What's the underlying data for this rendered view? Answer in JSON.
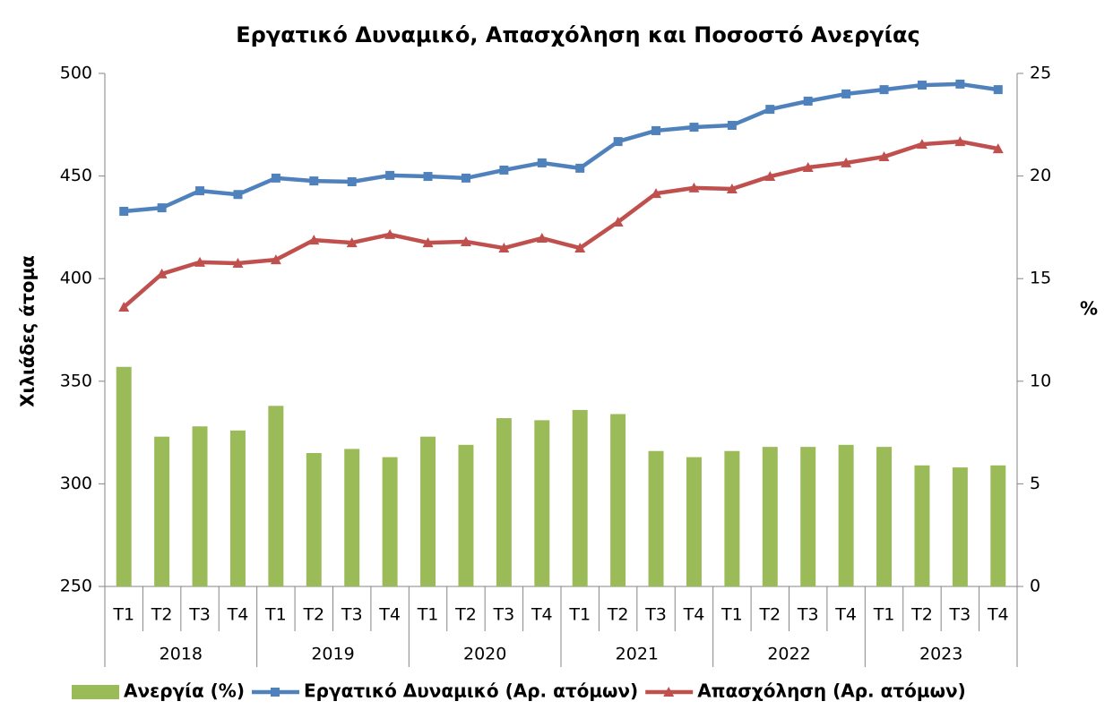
{
  "chart_data": {
    "type": "combo",
    "title": "Εργατικό Δυναμικό, Απασχόληση και Ποσοστό Ανεργίας",
    "y_label": "Χιλιάδες άτομα",
    "y2_label": "%",
    "categories": [
      "T1",
      "T2",
      "T3",
      "T4",
      "T1",
      "T2",
      "T3",
      "T4",
      "T1",
      "T2",
      "T3",
      "T4",
      "T1",
      "T2",
      "T3",
      "T4",
      "T1",
      "T2",
      "T3",
      "T4",
      "T1",
      "T2",
      "T3",
      "T4"
    ],
    "x_groups": [
      "2018",
      "2019",
      "2020",
      "2021",
      "2022",
      "2023"
    ],
    "ylim": [
      250,
      500
    ],
    "yticks": [
      250,
      300,
      350,
      400,
      450,
      500
    ],
    "y2lim": [
      0,
      25
    ],
    "y2ticks": [
      0,
      5,
      10,
      15,
      20,
      25
    ],
    "legend": "bottom",
    "series": [
      {
        "name": "Ανεργία (%)",
        "type": "bar",
        "axis": "y2",
        "color": "#9bbb59",
        "values": [
          10.7,
          7.3,
          7.8,
          7.6,
          8.8,
          6.5,
          6.7,
          6.3,
          7.3,
          6.9,
          8.2,
          8.1,
          8.6,
          8.4,
          6.6,
          6.3,
          6.6,
          6.8,
          6.8,
          6.9,
          6.8,
          5.9,
          5.8,
          5.9
        ]
      },
      {
        "name": "Εργατικό Δυναμικό (Αρ. ατόμων)",
        "type": "line",
        "marker": "square",
        "color": "#4f81bd",
        "values": [
          432.8,
          434.5,
          442.8,
          441,
          449,
          447.6,
          447.2,
          450.3,
          449.8,
          449,
          452.9,
          456.4,
          453.8,
          466.8,
          472.1,
          473.8,
          474.7,
          482.5,
          486.5,
          490,
          492.1,
          494.3,
          494.8,
          492.1
        ]
      },
      {
        "name": "Απασχόληση (Αρ. ατόμων)",
        "type": "line",
        "marker": "triangle",
        "color": "#c0504d",
        "values": [
          386.1,
          402.3,
          408,
          407.5,
          409.2,
          418.8,
          417.5,
          421.5,
          417.5,
          418,
          414.9,
          419.7,
          414.9,
          427.6,
          441.5,
          444.2,
          443.7,
          449.8,
          454.2,
          456.4,
          459.4,
          465.5,
          466.8,
          463.3
        ]
      }
    ]
  }
}
